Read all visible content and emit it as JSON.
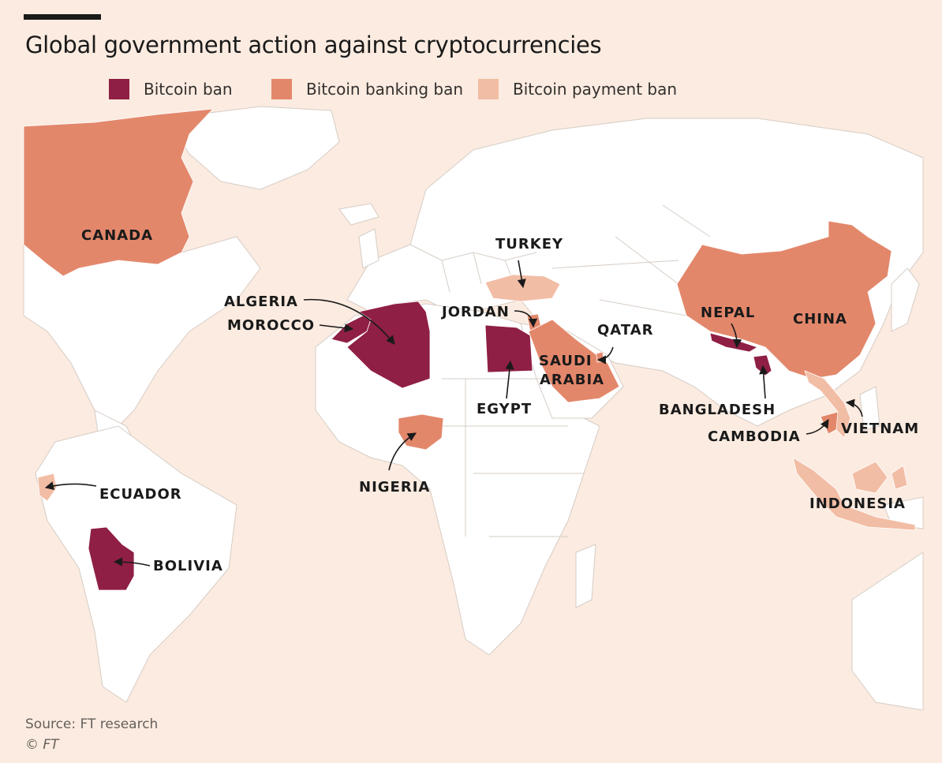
{
  "title": "Global government action against cryptocurrencies",
  "legend": [
    {
      "label": "Bitcoin ban",
      "color": "#8f1f44"
    },
    {
      "label": "Bitcoin banking ban",
      "color": "#e3876b"
    },
    {
      "label": "Bitcoin payment ban",
      "color": "#f2bda5"
    }
  ],
  "countries": {
    "canada": {
      "name": "CANADA",
      "status": "Bitcoin banking ban"
    },
    "algeria": {
      "name": "ALGERIA",
      "status": "Bitcoin ban"
    },
    "morocco": {
      "name": "MOROCCO",
      "status": "Bitcoin ban"
    },
    "turkey": {
      "name": "TURKEY",
      "status": "Bitcoin payment ban"
    },
    "jordan": {
      "name": "JORDAN",
      "status": "Bitcoin banking ban"
    },
    "qatar": {
      "name": "QATAR",
      "status": "Bitcoin banking ban"
    },
    "egypt": {
      "name": "EGYPT",
      "status": "Bitcoin ban"
    },
    "saudi_arabia": {
      "name_line1": "SAUDI",
      "name_line2": "ARABIA",
      "status": "Bitcoin banking ban"
    },
    "nigeria": {
      "name": "NIGERIA",
      "status": "Bitcoin banking ban"
    },
    "nepal": {
      "name": "NEPAL",
      "status": "Bitcoin ban"
    },
    "china": {
      "name": "CHINA",
      "status": "Bitcoin banking ban"
    },
    "bangladesh": {
      "name": "BANGLADESH",
      "status": "Bitcoin ban"
    },
    "cambodia": {
      "name": "CAMBODIA",
      "status": "Bitcoin banking ban"
    },
    "vietnam": {
      "name": "VIETNAM",
      "status": "Bitcoin payment ban"
    },
    "indonesia": {
      "name": "INDONESIA",
      "status": "Bitcoin payment ban"
    },
    "ecuador": {
      "name": "ECUADOR",
      "status": "Bitcoin payment ban"
    },
    "bolivia": {
      "name": "BOLIVIA",
      "status": "Bitcoin ban"
    }
  },
  "colors": {
    "background": "#fbebe0",
    "land": "#ffffff",
    "border": "#d6cdc6"
  },
  "source": "Source: FT research",
  "copyright": "© FT"
}
